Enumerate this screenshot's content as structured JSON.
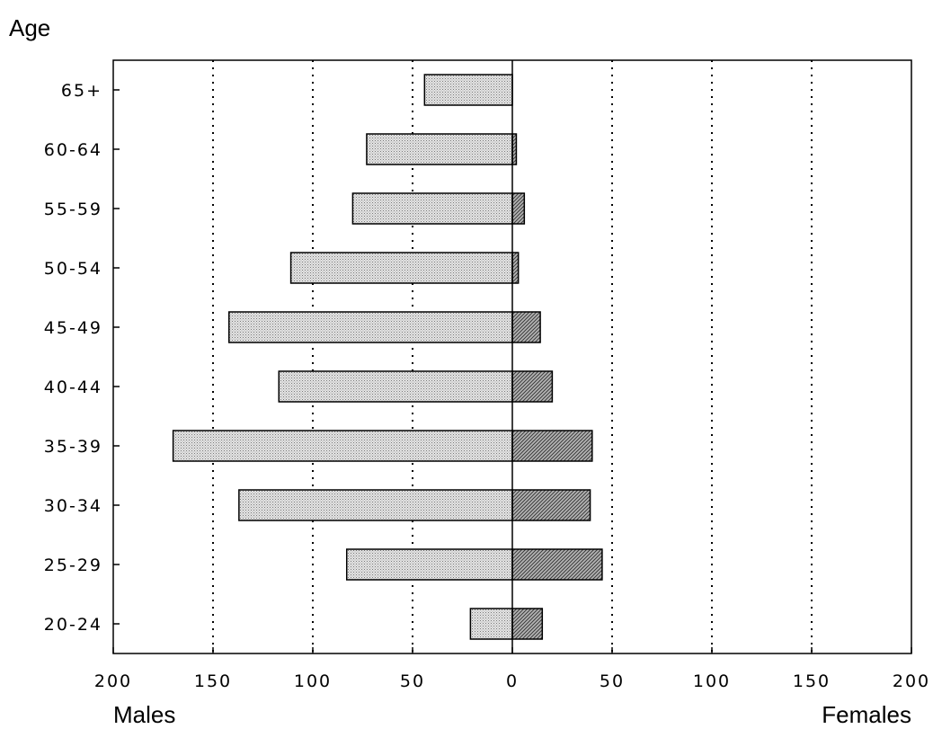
{
  "chart_data": {
    "type": "bar",
    "orientation": "horizontal",
    "subtype": "population-pyramid",
    "ylabel": "Age",
    "x_left_label": "Males",
    "x_right_label": "Females",
    "categories": [
      "65+",
      "60-64",
      "55-59",
      "50-54",
      "45-49",
      "40-44",
      "35-39",
      "30-34",
      "25-29",
      "20-24"
    ],
    "series": [
      {
        "name": "Males",
        "values": [
          44,
          73,
          80,
          111,
          142,
          117,
          170,
          137,
          83,
          21
        ],
        "color": "#c8c8c8",
        "side": "left"
      },
      {
        "name": "Females",
        "values": [
          0,
          2,
          6,
          3,
          14,
          20,
          40,
          39,
          45,
          15
        ],
        "color": "#8a8a8a",
        "side": "right"
      }
    ],
    "xlim": [
      -200,
      200
    ],
    "x_ticks": [
      -200,
      -150,
      -100,
      -50,
      0,
      50,
      100,
      150,
      200
    ],
    "x_tick_labels": [
      "200",
      "150",
      "100",
      "50",
      "0",
      "50",
      "100",
      "150",
      "200"
    ],
    "grid": "vertical dotted"
  }
}
